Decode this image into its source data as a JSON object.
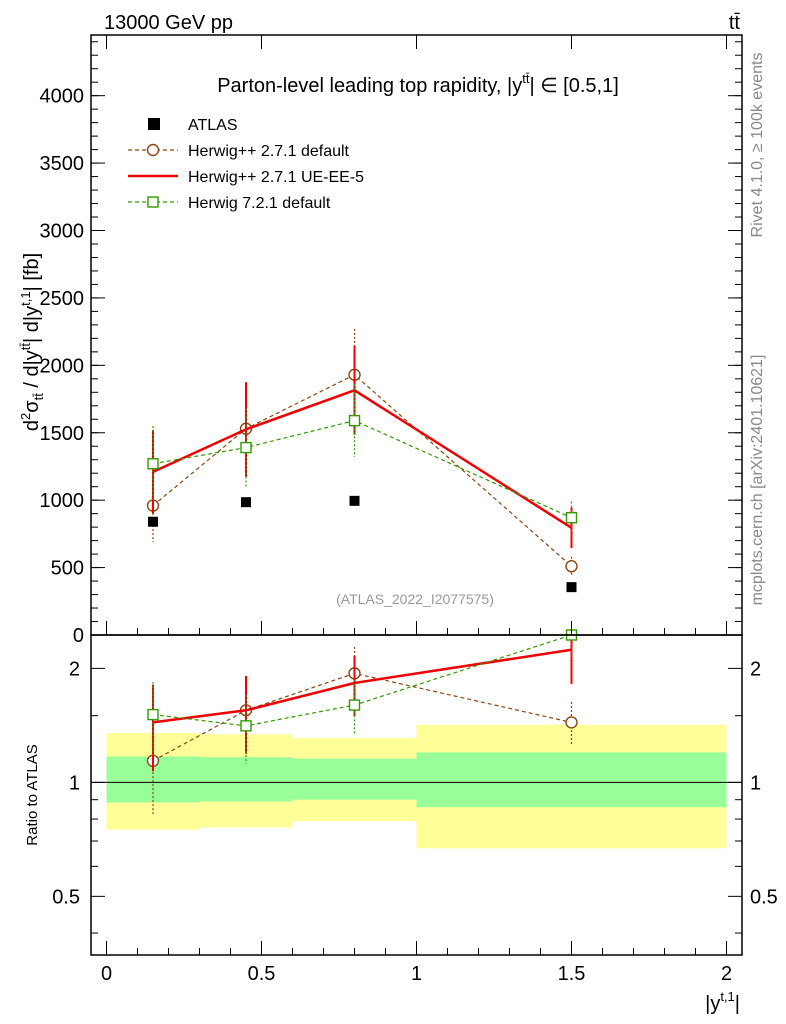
{
  "header": {
    "energy": "13000 GeV pp",
    "process": "tt̄"
  },
  "side_texts": {
    "rivet": "Rivet 4.1.0, ≥ 100k events",
    "source": "mcplots.cern.ch [arXiv:2401.10621]"
  },
  "chart_data": {
    "type": "line",
    "title": "Parton-level leading top rapidity, |y^{tt̄}| ∈ [0.5,1]",
    "watermark": "(ATLAS_2022_I2077575)",
    "xlabel": "|y^{t,1}|",
    "ylabel": "d²σ_{tt̄} / d|y^{tt̄}| d|y^{t,1}|  [fb]",
    "ratio_ylabel": "Ratio to ATLAS",
    "xlim": [
      -0.05,
      2.05
    ],
    "ylim": [
      0,
      4450
    ],
    "ratio_ylim": [
      0.35,
      2.45
    ],
    "x_ticks": [
      "0",
      "0.5",
      "1",
      "1.5",
      "2"
    ],
    "y_ticks": [
      "0",
      "500",
      "1000",
      "1500",
      "2000",
      "2500",
      "3000",
      "3500",
      "4000"
    ],
    "ratio_ticks": [
      "0.5",
      "1",
      "2"
    ],
    "bins": [
      [
        0,
        0.3
      ],
      [
        0.3,
        0.6
      ],
      [
        0.6,
        1.0
      ],
      [
        1.0,
        2.0
      ]
    ],
    "x": [
      0.15,
      0.45,
      0.8,
      1.5
    ],
    "band_inner": [
      [
        0.885,
        1.17
      ],
      [
        0.89,
        1.165
      ],
      [
        0.9,
        1.155
      ],
      [
        0.86,
        1.2
      ]
    ],
    "band_outer": [
      [
        0.75,
        1.35
      ],
      [
        0.76,
        1.34
      ],
      [
        0.79,
        1.31
      ],
      [
        0.67,
        1.42
      ]
    ],
    "series": [
      {
        "name": "ATLAS",
        "values": [
          840,
          985,
          995,
          355
        ],
        "color": "#000000",
        "style": "data"
      },
      {
        "name": "Herwig++ 2.7.1 default",
        "values": [
          960,
          1530,
          1930,
          510
        ],
        "err": [
          270,
          150,
          340,
          70
        ],
        "color": "#8b4513",
        "style": "dashed-circle"
      },
      {
        "name": "Herwig++ 2.7.1 UE-EE-5",
        "values": [
          1210,
          1525,
          1815,
          795
        ],
        "err": [
          310,
          350,
          330,
          150
        ],
        "color": "#ee0000",
        "style": "solid"
      },
      {
        "name": "Herwig 7.2.1 default",
        "values": [
          1270,
          1390,
          1590,
          870
        ],
        "err": [
          280,
          290,
          270,
          120
        ],
        "color": "#339900",
        "style": "dashed-square"
      }
    ],
    "ratio_series": [
      {
        "name": "Herwig++ 2.7.1 default",
        "values": [
          1.14,
          1.55,
          1.94,
          1.44
        ],
        "err": [
          0.32,
          0.15,
          0.34,
          0.19
        ]
      },
      {
        "name": "Herwig++ 2.7.1 UE-EE-5",
        "values": [
          1.44,
          1.55,
          1.83,
          2.24
        ],
        "err": [
          0.37,
          0.36,
          0.33,
          0.42
        ]
      },
      {
        "name": "Herwig 7.2.1 default",
        "values": [
          1.51,
          1.41,
          1.6,
          2.45
        ],
        "err": [
          0.33,
          0.29,
          0.27,
          0.34
        ]
      }
    ]
  }
}
